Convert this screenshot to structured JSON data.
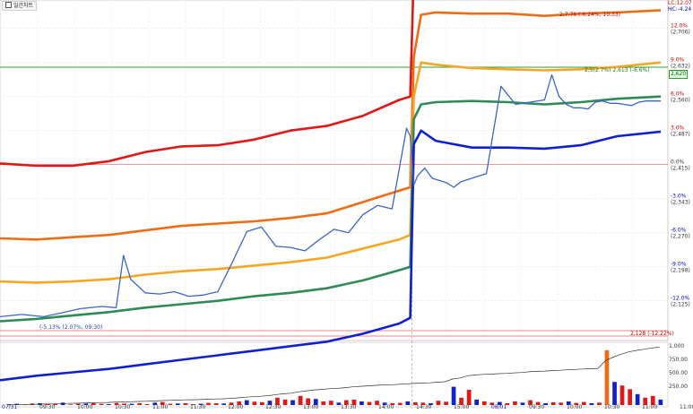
{
  "top_tag": "일간차트",
  "corner_labels": {
    "lc": "LC:12.07",
    "hc": "HC:-4.24"
  },
  "annotations": {
    "high_marker": "2,7.76 (-6.24%, 10:33)",
    "current_marker": "2,5(2.7%) 2,613 (-6.6%)",
    "low_marker": "(-5.13% (2.07%, 09:30)",
    "bottom_marker": "2,128 (-12.22%)"
  },
  "price_box": "2,620",
  "time_labels": [
    "07/31",
    "09:30",
    "10:00",
    "10:30",
    "11:00",
    "11:30",
    "12:00",
    "12:30",
    "13:00",
    "13:30",
    "14:00",
    "14:30",
    "15:00",
    "08/01",
    "09:30",
    "10:00",
    "10:30",
    "11:00",
    "11:00:00"
  ],
  "right_axis_labels": [
    {
      "pct": "12.0%",
      "price": "(2,706)"
    },
    {
      "pct": "9.0%",
      "price": "(2,632)"
    },
    {
      "pct": "6.0%",
      "price": "(2,560)"
    },
    {
      "pct": "3.0%",
      "price": "(2,487)"
    },
    {
      "pct": "0.0%",
      "price": "(2,415)"
    },
    {
      "pct": "-3.0%",
      "price": "(2,343)"
    },
    {
      "pct": "-6.0%",
      "price": "(2,270)"
    },
    {
      "pct": "-9.0%",
      "price": "(2,198)"
    },
    {
      "pct": "-12.0%",
      "price": "(2,125)"
    }
  ],
  "volume_axis_labels": [
    "1,000",
    "750.00",
    "500.00",
    "250.00"
  ],
  "colors": {
    "red": "#e01818",
    "orange": "#f06c14",
    "amber": "#f5a623",
    "green": "#2e8b57",
    "blue": "#1020d0",
    "price": "#3a66c8",
    "hline_green": "#2ca02c",
    "hline_red": "#e06060"
  },
  "chart_data": {
    "type": "line",
    "ylim_pct": [
      -15.5,
      14.5
    ],
    "series": [
      {
        "key": "red",
        "x": [
          0,
          10,
          20,
          30,
          40,
          50,
          60,
          70,
          80,
          90,
          100,
          110,
          113,
          114,
          116,
          120,
          130,
          140,
          150,
          160,
          170,
          182
        ],
        "y": [
          0.1,
          -0.1,
          -0.1,
          0.3,
          1.1,
          1.6,
          1.7,
          2.2,
          3.0,
          3.4,
          4.3,
          5.7,
          6.0,
          17.0,
          17.4,
          17.7,
          17.9,
          17.9,
          17.7,
          17.7,
          17.9,
          18.0
        ]
      },
      {
        "key": "orange",
        "x": [
          0,
          10,
          20,
          30,
          40,
          50,
          60,
          70,
          80,
          90,
          100,
          110,
          113,
          114,
          116,
          120,
          130,
          140,
          150,
          160,
          170,
          182
        ],
        "y": [
          -6.5,
          -6.6,
          -6.4,
          -6.2,
          -5.8,
          -5.4,
          -5.2,
          -5.0,
          -4.7,
          -4.3,
          -3.3,
          -2.3,
          -2.0,
          9.5,
          13.2,
          13.4,
          13.3,
          13.3,
          13.1,
          13.3,
          13.4,
          13.6
        ]
      },
      {
        "key": "amber",
        "x": [
          0,
          10,
          20,
          30,
          40,
          50,
          60,
          70,
          80,
          90,
          100,
          110,
          113,
          114,
          116,
          120,
          130,
          140,
          150,
          160,
          170,
          182
        ],
        "y": [
          -10.3,
          -10.4,
          -10.3,
          -10.1,
          -9.7,
          -9.4,
          -9.2,
          -8.9,
          -8.6,
          -8.2,
          -7.4,
          -6.6,
          -6.2,
          6.0,
          9.0,
          8.8,
          8.5,
          8.4,
          8.3,
          8.4,
          8.6,
          9.0
        ]
      },
      {
        "key": "green",
        "x": [
          0,
          10,
          20,
          30,
          40,
          50,
          60,
          70,
          80,
          90,
          100,
          110,
          113,
          114,
          116,
          120,
          130,
          140,
          150,
          160,
          170,
          182
        ],
        "y": [
          -13.8,
          -13.6,
          -13.3,
          -13.0,
          -12.6,
          -12.3,
          -12.0,
          -11.6,
          -11.3,
          -10.9,
          -10.2,
          -9.3,
          -9.0,
          4.0,
          5.3,
          5.5,
          5.6,
          5.5,
          5.3,
          5.5,
          5.8,
          6.0
        ]
      },
      {
        "key": "blue",
        "x": [
          0,
          10,
          20,
          30,
          40,
          50,
          60,
          70,
          80,
          90,
          100,
          110,
          113,
          114,
          116,
          120,
          130,
          140,
          150,
          160,
          170,
          182
        ],
        "y": [
          -19.0,
          -18.6,
          -18.3,
          -18.0,
          -17.6,
          -17.2,
          -16.8,
          -16.4,
          -16.0,
          -15.6,
          -14.9,
          -14.0,
          -13.5,
          1.8,
          3.0,
          2.1,
          1.5,
          1.5,
          1.4,
          1.7,
          2.5,
          2.9
        ]
      },
      {
        "key": "price",
        "x": [
          0,
          6,
          12,
          18,
          22,
          28,
          32,
          34,
          36,
          40,
          44,
          48,
          52,
          56,
          60,
          64,
          68,
          72,
          76,
          80,
          84,
          88,
          92,
          96,
          100,
          104,
          108,
          112,
          113,
          114,
          115,
          117,
          119,
          121,
          123,
          125,
          127,
          130,
          134,
          138,
          142,
          146,
          150,
          152,
          154,
          156,
          158,
          160,
          162,
          164,
          166,
          168,
          170,
          172,
          174,
          176,
          178,
          182
        ],
        "y": [
          -13.4,
          -13.2,
          -13.4,
          -13.0,
          -12.7,
          -12.5,
          -12.6,
          -8.0,
          -10.1,
          -11.3,
          -11.4,
          -11.2,
          -11.6,
          -11.5,
          -11.2,
          -8.6,
          -5.9,
          -5.5,
          -7.2,
          -7.3,
          -7.6,
          -6.6,
          -5.7,
          -6.0,
          -4.4,
          -3.6,
          -3.9,
          3.2,
          2.5,
          -1.8,
          -1.0,
          -0.3,
          -1.2,
          -1.4,
          -1.6,
          -2.0,
          -1.5,
          -1.2,
          -0.8,
          6.9,
          5.3,
          5.5,
          5.7,
          7.9,
          6.0,
          5.3,
          5.0,
          5.0,
          4.9,
          5.5,
          5.6,
          5.4,
          5.4,
          5.3,
          5.2,
          5.5,
          5.6,
          5.6
        ]
      }
    ],
    "volume": {
      "ylim": [
        0,
        1000
      ],
      "values": [
        15,
        20,
        10,
        25,
        30,
        20,
        15,
        40,
        10,
        20,
        25,
        30,
        20,
        15,
        35,
        25,
        20,
        30,
        15,
        40,
        50,
        20,
        25,
        30,
        15,
        20,
        35,
        30,
        25,
        40,
        60,
        80,
        55,
        45,
        70,
        120,
        90,
        80,
        150,
        110,
        100,
        60,
        70,
        40,
        80,
        90,
        60,
        50,
        70,
        40,
        30,
        35,
        60,
        45,
        40,
        30,
        70,
        55,
        300,
        120,
        250,
        90,
        60,
        40,
        50,
        30,
        60,
        40,
        80,
        50,
        30,
        45,
        40,
        60,
        35,
        50,
        30,
        40,
        900,
        380,
        320,
        260,
        180,
        120,
        150,
        90
      ],
      "colors": [
        "red",
        "blue"
      ]
    }
  }
}
